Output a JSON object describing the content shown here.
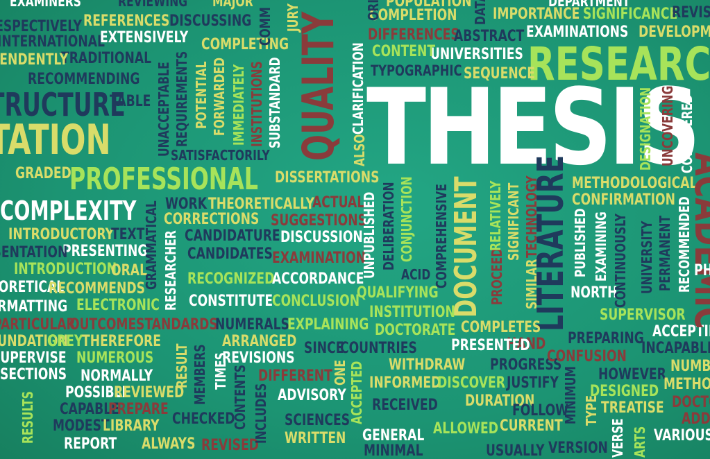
{
  "colors": {
    "background": "#1f9a7a",
    "white": "#ffffff",
    "lime": "#a7e35a",
    "yellow": "#d9dc6a",
    "navy": "#1f3a5c",
    "maroon": "#8a3b3b",
    "mint": "#9be07a"
  },
  "words": [
    "THESIS",
    "RESEARCH",
    "QUALITY",
    "PROFESSIONAL",
    "COMPLEXITY",
    "DISSERTATION",
    "STRUCTURE",
    "LITERATURE",
    "DOCUMENT",
    "EXAMINATIONS",
    "UNIVERSITIES",
    "CONTENT",
    "TYPOGRAPHIC",
    "SEQUENCE",
    "COMPLETION",
    "IMPORTANCE",
    "SIGNIFICANCE",
    "DIFFERENCES",
    "ABSTRACT",
    "POPULATION",
    "EXTENSIVELY",
    "REFERENCES",
    "DISCUSSING",
    "COMPLETING",
    "INTERNATIONAL",
    "TRADITIONAL",
    "RECOMMENDING",
    "RESPECTIVELY",
    "EXAMINERS",
    "REVIEWING",
    "MAJOR",
    "INDEPENDENTLY",
    "TABLE",
    "GRADED",
    "SATISFACTORILY",
    "SUBSTANDARD",
    "INSTITUTIONS",
    "IMMEDIATELY",
    "FORWARDED",
    "POTENTIAL",
    "REQUIREMENTS",
    "UNACCEPTABLE",
    "CLARIFICATION",
    "ALSO",
    "DISSERTATIONS",
    "WORK",
    "THEORETICALLY",
    "ACTUAL",
    "CORRECTIONS",
    "SUGGESTIONS",
    "CANDIDATURE",
    "DISCUSSION",
    "CANDIDATES",
    "EXAMINATION",
    "INTRODUCTORY",
    "TEXT",
    "PRESENTING",
    "PRESENTATION",
    "INTRODUCTION",
    "ORAL",
    "THEORETICAL",
    "RECOMMENDS",
    "FORMATTING",
    "ELECTRONIC",
    "RECOGNIZED",
    "ACCORDANCE",
    "CONSTITUTE",
    "CONCLUSION",
    "GRAMMATICAL",
    "RESEARCHER",
    "PARTICULAR",
    "OUTCOME",
    "STANDARDS",
    "NUMERALS",
    "EXPLAINING",
    "ARRANGED",
    "FOUNDATION",
    "GREY",
    "THEREFORE",
    "SUPERVISE",
    "NUMEROUS",
    "REVISIONS",
    "SECTIONS",
    "NORMALLY",
    "POSSIBLE",
    "REVIEWED",
    "CAPABLE",
    "PREPARE",
    "RESULTS",
    "MODEST",
    "LIBRARY",
    "CHECKED",
    "REPORT",
    "ALWAYS",
    "REVISED",
    "RESULT",
    "MEMBERS",
    "TIMES",
    "CONTENTS",
    "INCLUDES",
    "DIFFERENT",
    "ADVISORY",
    "SCIENCES",
    "WRITTEN",
    "ONE",
    "ACCEPTED",
    "QUALIFYING",
    "INSTITUTION",
    "DOCTORATE",
    "SINCE",
    "COUNTRIES",
    "WITHDRAW",
    "INFORMED",
    "DISCOVER",
    "RECEIVED",
    "GENERAL",
    "MINIMAL",
    "ACID",
    "UNPUBLISHED",
    "DELIBERATION",
    "CONJUNCTION",
    "COMPREHENSIVE",
    "PROCEED",
    "RELATIVELY",
    "SIGNIFICANT",
    "SIMILAR",
    "TECHNOLOGY",
    "COMPLETES",
    "HAND",
    "PRESENTED",
    "PROGRESS",
    "JUSTIFY",
    "DURATION",
    "FOLLOW",
    "ALLOWED",
    "CURRENT",
    "USUALLY",
    "MINIMUM",
    "PUBLISHED",
    "EXAMINING",
    "NORTH",
    "CONTINUOUSLY",
    "UNIVERSITY",
    "PERMANENT",
    "RECOMMENDED",
    "METHODOLOGICAL",
    "CONFIRMATION",
    "SUPERVISOR",
    "PREPARING",
    "CONFUSION",
    "HOWEVER",
    "DESIGNED",
    "TREATISE",
    "TYPE",
    "VERSE",
    "VERSION",
    "ARTS",
    "VARIOUS",
    "DESIGNATION",
    "UNCOVERING",
    "CONSIDERED",
    "DEPARTMENT",
    "DEVELOPMENT",
    "REVISED",
    "ACCEPTING",
    "INCAPABLE",
    "NUMBER",
    "METHOD",
    "DOCTOR",
    "ADDED",
    "ACADEMIC",
    "JURY",
    "COMM",
    "ORI",
    "DATA",
    "PH"
  ]
}
